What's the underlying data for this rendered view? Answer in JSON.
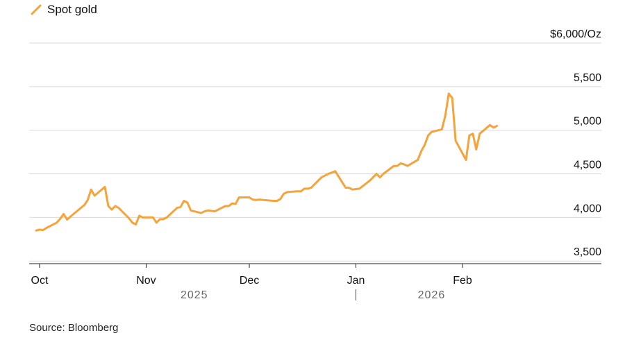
{
  "chart_data": {
    "type": "line",
    "legend": {
      "label": "Spot gold",
      "placement": "top-left"
    },
    "series": [
      {
        "name": "Spot gold",
        "color": "#F5A33A",
        "points": [
          [
            "2025-09-30",
            3850
          ],
          [
            "2025-10-01",
            3860
          ],
          [
            "2025-10-02",
            3855
          ],
          [
            "2025-10-03",
            3880
          ],
          [
            "2025-10-06",
            3940
          ],
          [
            "2025-10-07",
            3985
          ],
          [
            "2025-10-08",
            4040
          ],
          [
            "2025-10-09",
            3975
          ],
          [
            "2025-10-10",
            4010
          ],
          [
            "2025-10-13",
            4110
          ],
          [
            "2025-10-14",
            4140
          ],
          [
            "2025-10-15",
            4200
          ],
          [
            "2025-10-16",
            4320
          ],
          [
            "2025-10-17",
            4250
          ],
          [
            "2025-10-20",
            4350
          ],
          [
            "2025-10-21",
            4130
          ],
          [
            "2025-10-22",
            4090
          ],
          [
            "2025-10-23",
            4130
          ],
          [
            "2025-10-24",
            4110
          ],
          [
            "2025-10-27",
            3990
          ],
          [
            "2025-10-28",
            3940
          ],
          [
            "2025-10-29",
            3920
          ],
          [
            "2025-10-30",
            4020
          ],
          [
            "2025-10-31",
            4000
          ],
          [
            "2025-11-03",
            4000
          ],
          [
            "2025-11-04",
            3940
          ],
          [
            "2025-11-05",
            3980
          ],
          [
            "2025-11-06",
            3980
          ],
          [
            "2025-11-07",
            4000
          ],
          [
            "2025-11-10",
            4110
          ],
          [
            "2025-11-11",
            4120
          ],
          [
            "2025-11-12",
            4190
          ],
          [
            "2025-11-13",
            4170
          ],
          [
            "2025-11-14",
            4080
          ],
          [
            "2025-11-17",
            4050
          ],
          [
            "2025-11-18",
            4070
          ],
          [
            "2025-11-19",
            4080
          ],
          [
            "2025-11-20",
            4075
          ],
          [
            "2025-11-21",
            4070
          ],
          [
            "2025-11-24",
            4130
          ],
          [
            "2025-11-25",
            4130
          ],
          [
            "2025-11-26",
            4160
          ],
          [
            "2025-11-27",
            4155
          ],
          [
            "2025-11-28",
            4230
          ],
          [
            "2025-12-01",
            4230
          ],
          [
            "2025-12-02",
            4205
          ],
          [
            "2025-12-03",
            4200
          ],
          [
            "2025-12-04",
            4205
          ],
          [
            "2025-12-05",
            4200
          ],
          [
            "2025-12-08",
            4190
          ],
          [
            "2025-12-09",
            4190
          ],
          [
            "2025-12-10",
            4210
          ],
          [
            "2025-12-11",
            4270
          ],
          [
            "2025-12-12",
            4290
          ],
          [
            "2025-12-15",
            4300
          ],
          [
            "2025-12-16",
            4300
          ],
          [
            "2025-12-17",
            4330
          ],
          [
            "2025-12-18",
            4330
          ],
          [
            "2025-12-19",
            4340
          ],
          [
            "2025-12-22",
            4460
          ],
          [
            "2025-12-23",
            4480
          ],
          [
            "2025-12-24",
            4500
          ],
          [
            "2025-12-26",
            4530
          ],
          [
            "2025-12-29",
            4340
          ],
          [
            "2025-12-30",
            4340
          ],
          [
            "2025-12-31",
            4320
          ],
          [
            "2026-01-02",
            4330
          ],
          [
            "2026-01-05",
            4420
          ],
          [
            "2026-01-06",
            4460
          ],
          [
            "2026-01-07",
            4500
          ],
          [
            "2026-01-08",
            4460
          ],
          [
            "2026-01-09",
            4500
          ],
          [
            "2026-01-12",
            4590
          ],
          [
            "2026-01-13",
            4590
          ],
          [
            "2026-01-14",
            4620
          ],
          [
            "2026-01-15",
            4610
          ],
          [
            "2026-01-16",
            4590
          ],
          [
            "2026-01-19",
            4660
          ],
          [
            "2026-01-20",
            4760
          ],
          [
            "2026-01-21",
            4830
          ],
          [
            "2026-01-22",
            4940
          ],
          [
            "2026-01-23",
            4980
          ],
          [
            "2026-01-26",
            5010
          ],
          [
            "2026-01-27",
            5170
          ],
          [
            "2026-01-28",
            5420
          ],
          [
            "2026-01-29",
            5370
          ],
          [
            "2026-01-30",
            4880
          ],
          [
            "2026-02-02",
            4660
          ],
          [
            "2026-02-03",
            4940
          ],
          [
            "2026-02-04",
            4960
          ],
          [
            "2026-02-05",
            4780
          ],
          [
            "2026-02-06",
            4960
          ],
          [
            "2026-02-09",
            5060
          ],
          [
            "2026-02-10",
            5030
          ],
          [
            "2026-02-11",
            5050
          ]
        ]
      }
    ],
    "y_axis": {
      "range": [
        3470,
        6000
      ],
      "ticks": [
        {
          "value": 6000,
          "label": "$6,000/Oz"
        },
        {
          "value": 5500,
          "label": "5,500"
        },
        {
          "value": 5000,
          "label": "5,000"
        },
        {
          "value": 4500,
          "label": "4,500"
        },
        {
          "value": 4000,
          "label": "4,000"
        },
        {
          "value": 3500,
          "label": "3,500"
        }
      ],
      "gridlines": true,
      "position": "right"
    },
    "x_axis": {
      "range": [
        "2025-09-30",
        "2026-02-22"
      ],
      "ticks": [
        {
          "date": "2025-10-01",
          "label": "Oct"
        },
        {
          "date": "2025-11-01",
          "label": "Nov"
        },
        {
          "date": "2025-12-01",
          "label": "Dec"
        },
        {
          "date": "2026-01-01",
          "label": "Jan"
        },
        {
          "date": "2026-02-01",
          "label": "Feb"
        }
      ],
      "years": [
        {
          "date": "2025-11-15",
          "label": "2025"
        },
        {
          "date": "2026-01-23",
          "label": "2026"
        }
      ],
      "year_divider": "2026-01-01"
    }
  },
  "source": "Source: Bloomberg"
}
